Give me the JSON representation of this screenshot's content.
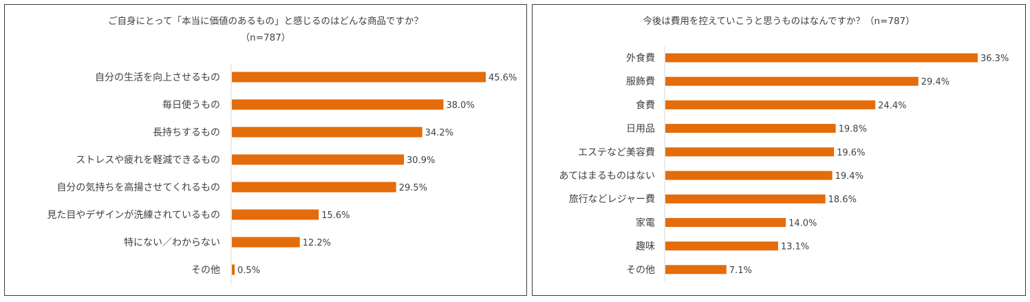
{
  "chart_data": [
    {
      "type": "bar",
      "orientation": "horizontal",
      "title": "ご自身にとって「本当に価値のあるもの」と感じるのはどんな商品ですか？",
      "subtitle": "（n=787）",
      "categories": [
        "自分の生活を向上させるもの",
        "毎日使うもの",
        "長持ちするもの",
        "ストレスや疲れを軽減できるもの",
        "自分の気持ちを高揚させてくれるもの",
        "見た目やデザインが洗練されているもの",
        "特にない／わからない",
        "その他"
      ],
      "values": [
        45.6,
        38.0,
        34.2,
        30.9,
        29.5,
        15.6,
        12.2,
        0.5
      ],
      "value_labels": [
        "45.6%",
        "38.0%",
        "34.2%",
        "30.9%",
        "29.5%",
        "15.6%",
        "12.2%",
        "0.5%"
      ],
      "xlim": [
        0,
        45.6
      ],
      "bar_color": "#E46C0A",
      "grid": false,
      "legend": "none"
    },
    {
      "type": "bar",
      "orientation": "horizontal",
      "title": "今後は費用を控えていこうと思うものはなんですか？（n=787）",
      "categories": [
        "外食費",
        "服飾費",
        "食費",
        "日用品",
        "エステなど美容費",
        "あてはまるものはない",
        "旅行などレジャー費",
        "家電",
        "趣味",
        "その他"
      ],
      "values": [
        36.3,
        29.4,
        24.4,
        19.8,
        19.6,
        19.4,
        18.6,
        14.0,
        13.1,
        7.1
      ],
      "value_labels": [
        "36.3%",
        "29.4%",
        "24.4%",
        "19.8%",
        "19.6%",
        "19.4%",
        "18.6%",
        "14.0%",
        "13.1%",
        "7.1%"
      ],
      "xlim": [
        0,
        36.3
      ],
      "bar_color": "#E46C0A",
      "grid": false,
      "legend": "none"
    }
  ]
}
